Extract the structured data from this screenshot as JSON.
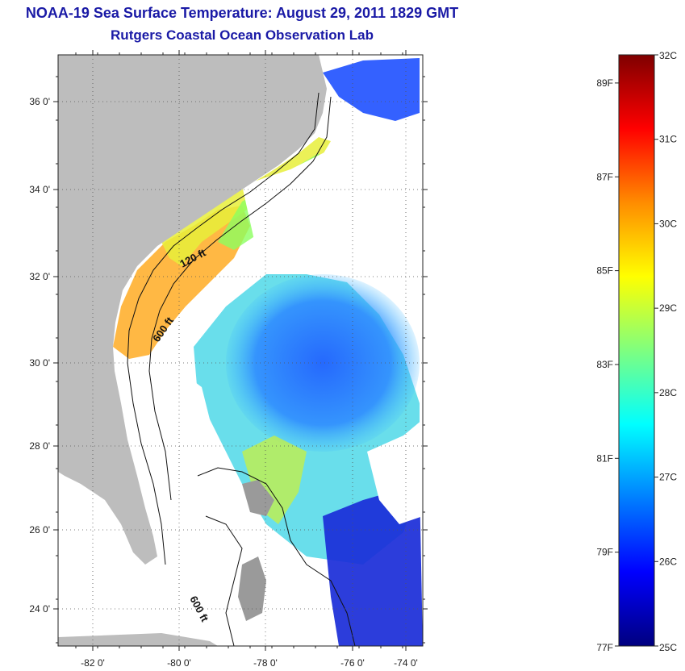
{
  "title": "NOAA-19 Sea Surface Temperature:  August 29, 2011 1829 GMT",
  "subtitle": "Rutgers Coastal Ocean Observation Lab",
  "map": {
    "lon_ticks": [
      "-82 0'",
      "-80 0'",
      "-78 0'",
      "-76 0'",
      "-74 0'"
    ],
    "lat_ticks": [
      "36 0'",
      "34 0'",
      "32 0'",
      "30 0'",
      "28 0'",
      "26 0'",
      "24 0'"
    ],
    "contour_labels": [
      "120 ft",
      "600 ft",
      "600 ft"
    ],
    "land_color": "#bdbdbd",
    "cloud_color": "#ffffff"
  },
  "colorbar": {
    "celsius": [
      "32C",
      "31C",
      "30C",
      "29C",
      "28C",
      "27C",
      "26C",
      "25C"
    ],
    "fahrenheit": [
      "89F",
      "87F",
      "85F",
      "83F",
      "81F",
      "79F",
      "77F"
    ],
    "stops": [
      "#7f0000",
      "#ff0000",
      "#ff8c00",
      "#ffff00",
      "#7fff7f",
      "#00ffff",
      "#007fff",
      "#0000ff",
      "#00007f"
    ]
  }
}
